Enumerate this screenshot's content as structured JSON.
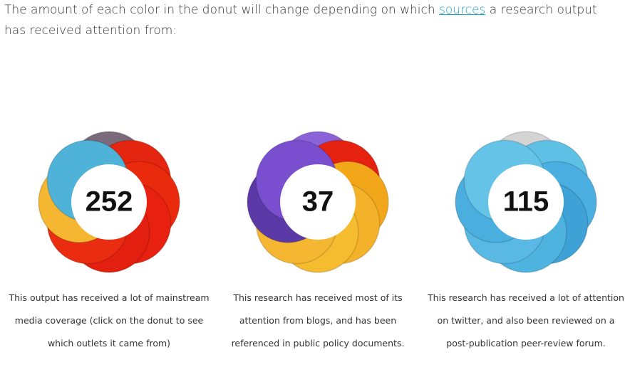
{
  "intro": {
    "before": "The amount of each color in the donut will change depending on which",
    "link": "sources",
    "after": "a research output has received attention from:"
  },
  "donuts": [
    {
      "score": "252",
      "colors": [
        "#7a6a7c",
        "#e4250f",
        "#ea2a0c",
        "#e8200f",
        "#e31f10",
        "#ea2d10",
        "#f5b731",
        "#4fb3d9"
      ],
      "caption": [
        "This output has received a lot of mainstream",
        "media coverage (click on the donut to see",
        "which outlets it came from)"
      ]
    },
    {
      "score": "37",
      "colors": [
        "#8b62d8",
        "#e52210",
        "#f2a71b",
        "#f4b12a",
        "#f6bc30",
        "#f5b731",
        "#5b3aa8",
        "#7a4fcf"
      ],
      "caption": [
        "This research has received most of its",
        "attention from blogs, and has been",
        "referenced in public policy documents."
      ]
    },
    {
      "score": "115",
      "colors": [
        "#d4d4d4",
        "#5fc0e6",
        "#4aafe0",
        "#3fa2d6",
        "#4fb3e0",
        "#5ab9e4",
        "#4aaede",
        "#66c3e8"
      ],
      "caption": [
        "This research has received a lot of attention",
        "on twitter, and also been reviewed on a",
        "post-publication peer-review forum."
      ]
    }
  ]
}
